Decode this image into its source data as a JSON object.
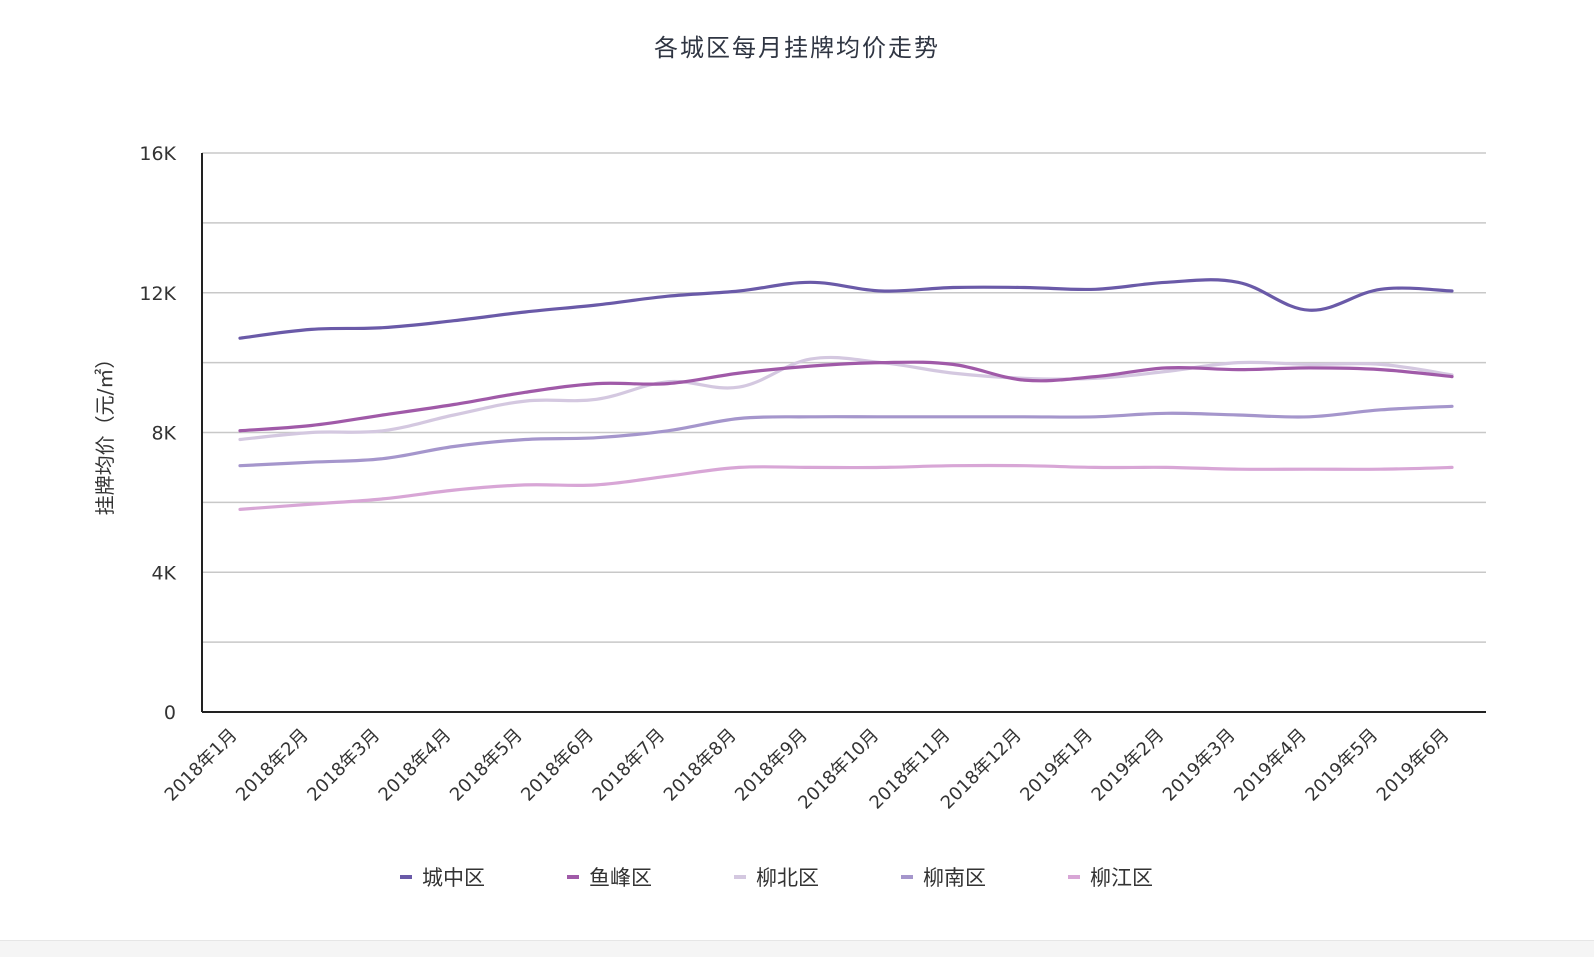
{
  "chart_data": {
    "type": "line",
    "title": "各城区每月挂牌均价走势",
    "ylabel": "挂牌均价（元/㎡）",
    "xlabel": "",
    "ylim": [
      0,
      16000
    ],
    "y_ticks": [
      {
        "value": 0,
        "label": "0"
      },
      {
        "value": 4000,
        "label": "4K"
      },
      {
        "value": 8000,
        "label": "8K"
      },
      {
        "value": 12000,
        "label": "12K"
      },
      {
        "value": 16000,
        "label": "16K"
      }
    ],
    "gridlines": [
      2000,
      4000,
      6000,
      8000,
      10000,
      12000,
      14000,
      16000
    ],
    "grid": true,
    "legend_position": "bottom",
    "categories": [
      "2018年1月",
      "2018年2月",
      "2018年3月",
      "2018年4月",
      "2018年5月",
      "2018年6月",
      "2018年7月",
      "2018年8月",
      "2018年9月",
      "2018年10月",
      "2018年11月",
      "2018年12月",
      "2019年1月",
      "2019年2月",
      "2019年3月",
      "2019年4月",
      "2019年5月",
      "2019年6月"
    ],
    "series": [
      {
        "name": "城中区",
        "color": "#6a5aa8",
        "values": [
          10700,
          10950,
          11000,
          11200,
          11450,
          11650,
          11900,
          12050,
          12300,
          12050,
          12150,
          12150,
          12100,
          12300,
          12300,
          11500,
          12100,
          12050
        ]
      },
      {
        "name": "鱼峰区",
        "color": "#a05aa8",
        "values": [
          8050,
          8200,
          8500,
          8800,
          9150,
          9400,
          9400,
          9700,
          9900,
          10000,
          9950,
          9500,
          9600,
          9850,
          9800,
          9850,
          9800,
          9600
        ]
      },
      {
        "name": "柳北区",
        "color": "#d4c8e0",
        "values": [
          7800,
          8000,
          8050,
          8500,
          8900,
          8950,
          9450,
          9300,
          10100,
          10000,
          9700,
          9550,
          9550,
          9750,
          10000,
          9950,
          9950,
          9650
        ]
      },
      {
        "name": "柳南区",
        "color": "#a596cc",
        "values": [
          7050,
          7150,
          7250,
          7600,
          7800,
          7850,
          8050,
          8400,
          8450,
          8450,
          8450,
          8450,
          8450,
          8550,
          8500,
          8450,
          8650,
          8750
        ]
      },
      {
        "name": "柳江区",
        "color": "#d8a6d6",
        "values": [
          5800,
          5950,
          6100,
          6350,
          6500,
          6500,
          6750,
          7000,
          7000,
          7000,
          7050,
          7050,
          7000,
          7000,
          6950,
          6950,
          6950,
          7000
        ]
      }
    ]
  }
}
